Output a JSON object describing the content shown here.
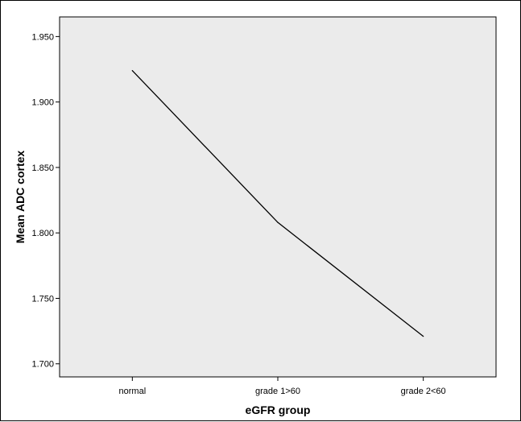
{
  "chart_data": {
    "type": "line",
    "title": "",
    "xlabel": "eGFR group",
    "ylabel": "Mean ADC cortex",
    "categories": [
      "normal",
      "grade 1>60",
      "grade 2<60"
    ],
    "series": [
      {
        "values": [
          1.924,
          1.808,
          1.721
        ]
      }
    ],
    "ylim": [
      1.69,
      1.965
    ],
    "yticks": [
      "1.700",
      "1.750",
      "1.800",
      "1.850",
      "1.900",
      "1.950"
    ],
    "grid": false,
    "legend": "none",
    "colors": {
      "plot_background": "#ebebeb",
      "line": "#000000",
      "axis": "#000000"
    }
  }
}
